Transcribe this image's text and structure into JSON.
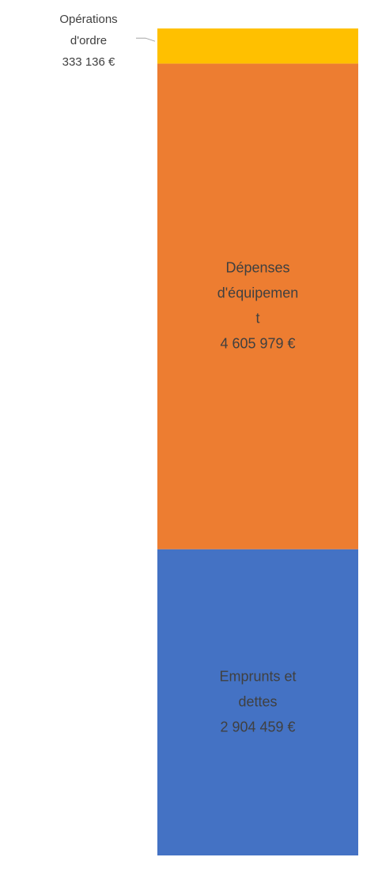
{
  "chart_data": {
    "type": "stacked-bar",
    "series": [
      {
        "name": "Emprunts et dettes",
        "color": "#4472c4",
        "values": [
          2904459
        ],
        "value_labels": [
          "2 904 459 €"
        ]
      },
      {
        "name": "Dépenses d'équipement",
        "color": "#ed7d31",
        "values": [
          4605979
        ],
        "value_labels": [
          "4 605 979 €"
        ]
      },
      {
        "name": "Opérations d'ordre",
        "color": "#ffc000",
        "values": [
          333136
        ],
        "value_labels": [
          "333 136 €"
        ]
      }
    ]
  }
}
